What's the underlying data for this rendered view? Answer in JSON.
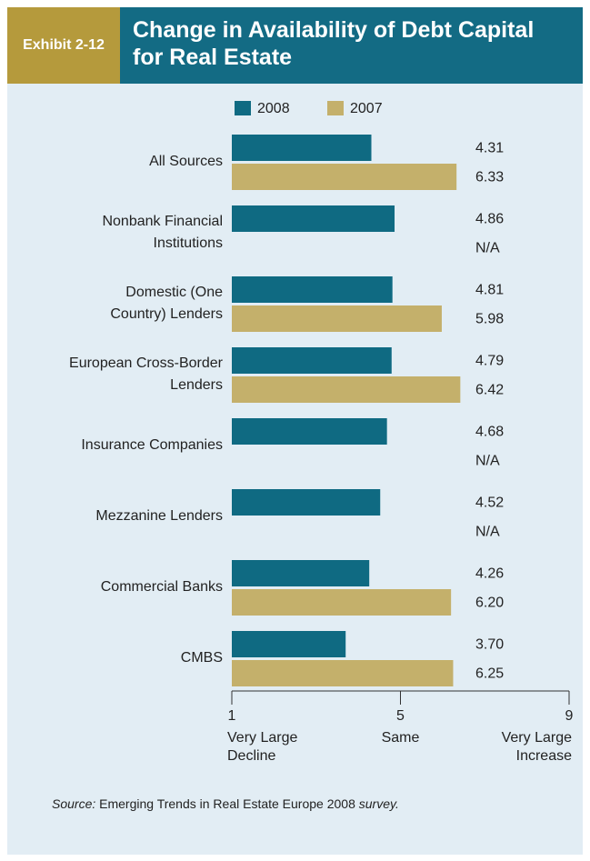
{
  "chart_data": {
    "type": "bar",
    "orientation": "horizontal",
    "exhibit": "Exhibit 2-12",
    "title": "Change in Availability of Debt Capital for Real Estate",
    "categories": [
      "All Sources",
      "Nonbank Financial\nInstitutions",
      "Domestic (One\nCountry) Lenders",
      "European Cross-Border\nLenders",
      "Insurance Companies",
      "Mezzanine Lenders",
      "Commercial Banks",
      "CMBS"
    ],
    "series": [
      {
        "name": "2008",
        "color": "#0f6a82",
        "values": [
          4.31,
          4.86,
          4.81,
          4.79,
          4.68,
          4.52,
          4.26,
          3.7
        ],
        "value_labels": [
          "4.31",
          "4.86",
          "4.81",
          "4.79",
          "4.68",
          "4.52",
          "4.26",
          "3.70"
        ]
      },
      {
        "name": "2007",
        "color": "#c4b06b",
        "values": [
          6.33,
          null,
          5.98,
          6.42,
          null,
          null,
          6.2,
          6.25
        ],
        "value_labels": [
          "6.33",
          "N/A",
          "5.98",
          "6.42",
          "N/A",
          "N/A",
          "6.20",
          "6.25"
        ]
      }
    ],
    "xlim": [
      1,
      9
    ],
    "xticks": [
      1,
      5,
      9
    ],
    "xtick_descriptions": [
      "Very Large\nDecline",
      "Same",
      "Very Large\nIncrease"
    ],
    "source": {
      "label": "Source:",
      "text": "Emerging Trends in Real Estate Europe 2008",
      "suffix": "survey."
    }
  }
}
